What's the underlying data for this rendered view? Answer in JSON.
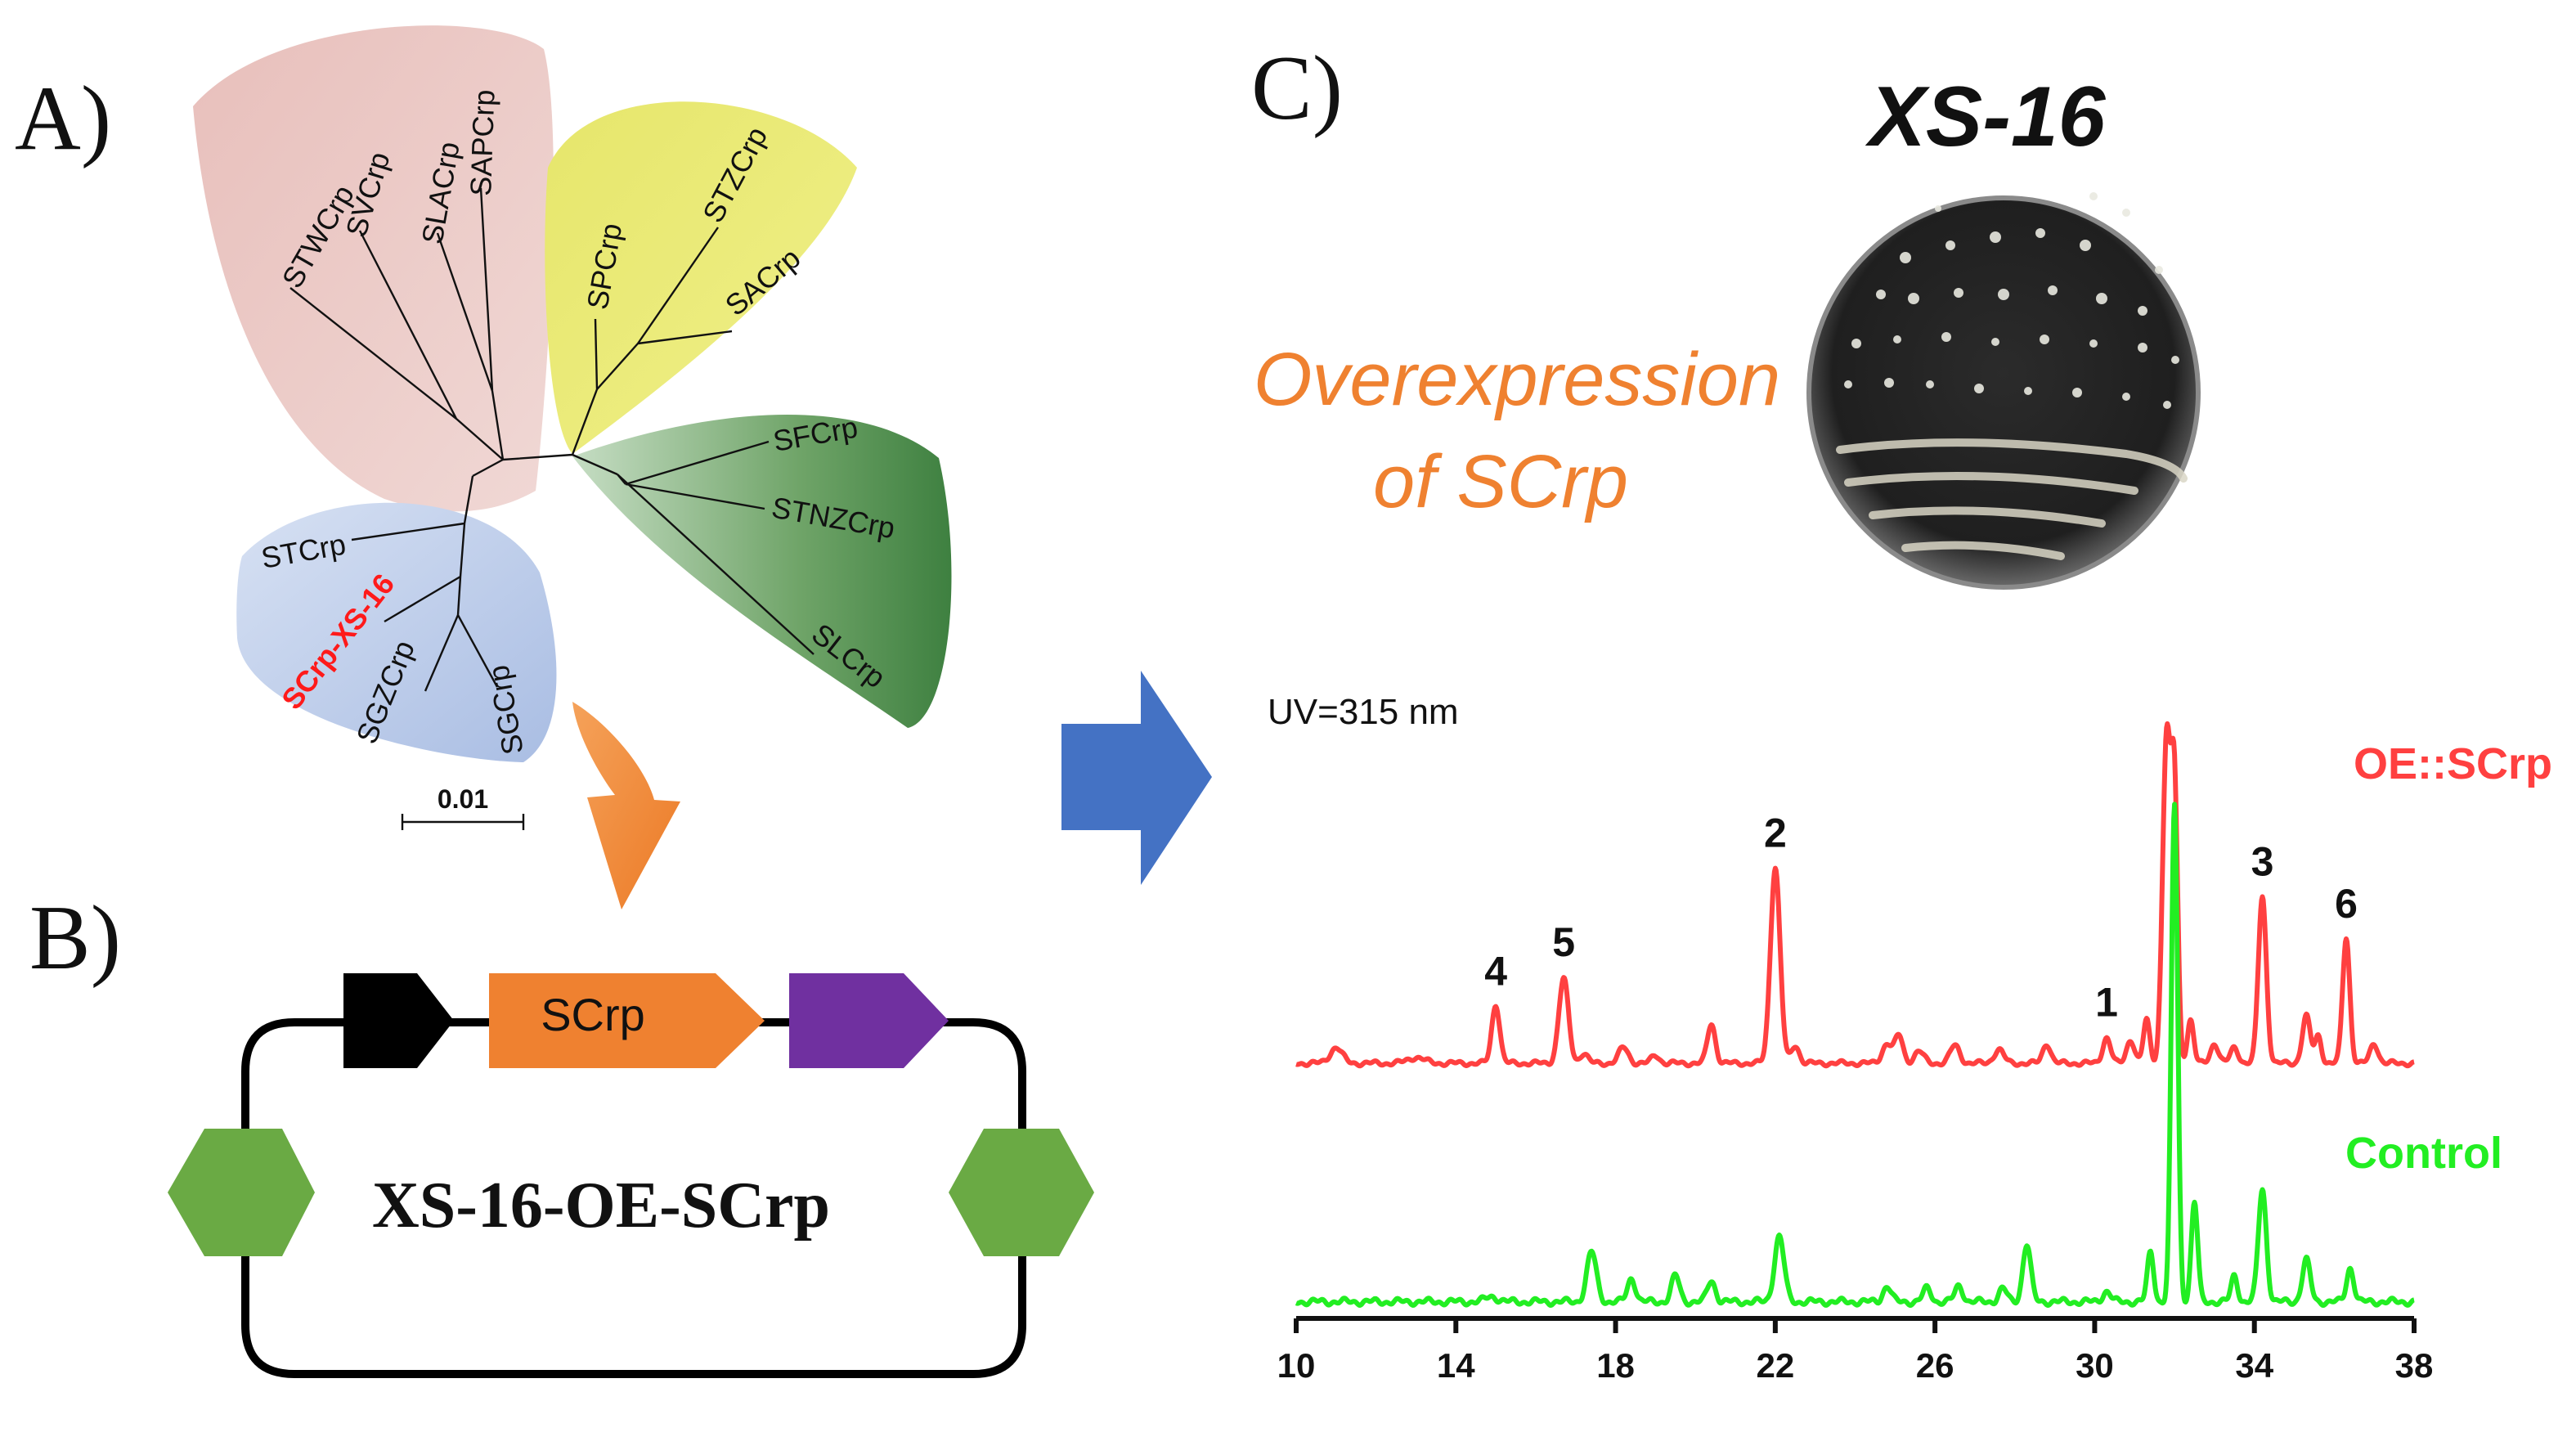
{
  "panels": {
    "a_label": "A)",
    "b_label": "B)",
    "c_label": "C)"
  },
  "tree": {
    "leaves": [
      "STWCrp",
      "SVCrp",
      "SLACrp",
      "SAPCrp",
      "SPCrp",
      "STZCrp",
      "SACrp",
      "SFCrp",
      "STNZCrp",
      "SLCrp",
      "STCrp",
      "SCrp-XS-16",
      "SGZCrp",
      "SGCrp"
    ],
    "scale_bar_label": "0.01",
    "clade_colors": [
      "#e9c4c1",
      "#ecec72",
      "#5f9e5a",
      "#b8c9e8"
    ],
    "highlight_color": "#ff1a1a"
  },
  "construct": {
    "gene_label": "SCrp",
    "plasmid_name": "XS-16-OE-SCrp",
    "promoter_color": "#000000",
    "gene_color": "#ef8130",
    "terminator_color": "#7030a0",
    "marker_color": "#6aaa44"
  },
  "panel_c": {
    "strain_title": "XS-16",
    "overexpression_text_line1": "Overexpression",
    "overexpression_text_line2": "of SCrp",
    "overexpression_color": "#ef8130",
    "uv_label": "UV=315 nm",
    "arrow_color": "#4472c4"
  },
  "chart_data": {
    "type": "line",
    "title": "",
    "xlabel": "",
    "ylabel": "",
    "xlim": [
      10,
      38
    ],
    "x_ticks": [
      "10",
      "14",
      "18",
      "22",
      "26",
      "30",
      "34",
      "38"
    ],
    "series": [
      {
        "name": "OE::SCrp",
        "color": "#ff4040",
        "baseline": 0.05,
        "peaks": [
          {
            "x": 11.0,
            "h": 0.08,
            "w": 0.15
          },
          {
            "x": 13.0,
            "h": 0.03,
            "w": 0.2
          },
          {
            "x": 15.0,
            "h": 0.3,
            "w": 0.1
          },
          {
            "x": 16.7,
            "h": 0.43,
            "w": 0.12
          },
          {
            "x": 17.2,
            "h": 0.05,
            "w": 0.1
          },
          {
            "x": 18.2,
            "h": 0.08,
            "w": 0.12
          },
          {
            "x": 19.0,
            "h": 0.04,
            "w": 0.1
          },
          {
            "x": 20.4,
            "h": 0.2,
            "w": 0.1
          },
          {
            "x": 22.0,
            "h": 1.0,
            "w": 0.12
          },
          {
            "x": 22.5,
            "h": 0.09,
            "w": 0.1
          },
          {
            "x": 24.8,
            "h": 0.1,
            "w": 0.12
          },
          {
            "x": 25.1,
            "h": 0.14,
            "w": 0.1
          },
          {
            "x": 25.6,
            "h": 0.06,
            "w": 0.12
          },
          {
            "x": 26.5,
            "h": 0.09,
            "w": 0.12
          },
          {
            "x": 27.6,
            "h": 0.07,
            "w": 0.12
          },
          {
            "x": 28.8,
            "h": 0.1,
            "w": 0.1
          },
          {
            "x": 30.3,
            "h": 0.13,
            "w": 0.1
          },
          {
            "x": 30.9,
            "h": 0.12,
            "w": 0.1
          },
          {
            "x": 31.3,
            "h": 0.22,
            "w": 0.08
          },
          {
            "x": 31.8,
            "h": 1.65,
            "w": 0.1
          },
          {
            "x": 32.0,
            "h": 1.35,
            "w": 0.08
          },
          {
            "x": 32.4,
            "h": 0.22,
            "w": 0.08
          },
          {
            "x": 33.0,
            "h": 0.1,
            "w": 0.1
          },
          {
            "x": 33.5,
            "h": 0.08,
            "w": 0.1
          },
          {
            "x": 34.2,
            "h": 0.85,
            "w": 0.1
          },
          {
            "x": 35.3,
            "h": 0.24,
            "w": 0.1
          },
          {
            "x": 35.6,
            "h": 0.14,
            "w": 0.08
          },
          {
            "x": 36.3,
            "h": 0.64,
            "w": 0.09
          },
          {
            "x": 37.0,
            "h": 0.1,
            "w": 0.1
          }
        ]
      },
      {
        "name": "Control",
        "color": "#22ee22",
        "baseline": 0.02,
        "peaks": [
          {
            "x": 14.9,
            "h": 0.02,
            "w": 0.15
          },
          {
            "x": 17.4,
            "h": 0.19,
            "w": 0.12
          },
          {
            "x": 18.4,
            "h": 0.09,
            "w": 0.1
          },
          {
            "x": 19.5,
            "h": 0.1,
            "w": 0.1
          },
          {
            "x": 20.4,
            "h": 0.08,
            "w": 0.1
          },
          {
            "x": 22.1,
            "h": 0.25,
            "w": 0.12
          },
          {
            "x": 24.8,
            "h": 0.06,
            "w": 0.1
          },
          {
            "x": 25.8,
            "h": 0.05,
            "w": 0.1
          },
          {
            "x": 26.6,
            "h": 0.06,
            "w": 0.1
          },
          {
            "x": 27.7,
            "h": 0.05,
            "w": 0.1
          },
          {
            "x": 28.3,
            "h": 0.22,
            "w": 0.1
          },
          {
            "x": 30.3,
            "h": 0.04,
            "w": 0.1
          },
          {
            "x": 31.4,
            "h": 0.19,
            "w": 0.08
          },
          {
            "x": 32.0,
            "h": 1.9,
            "w": 0.08
          },
          {
            "x": 32.5,
            "h": 0.38,
            "w": 0.08
          },
          {
            "x": 33.5,
            "h": 0.1,
            "w": 0.08
          },
          {
            "x": 34.2,
            "h": 0.43,
            "w": 0.1
          },
          {
            "x": 35.3,
            "h": 0.16,
            "w": 0.1
          },
          {
            "x": 36.4,
            "h": 0.13,
            "w": 0.09
          }
        ]
      }
    ],
    "annotations": [
      {
        "label": "1",
        "x": 30.3,
        "series": "OE::SCrp"
      },
      {
        "label": "2",
        "x": 22.0,
        "series": "OE::SCrp"
      },
      {
        "label": "3",
        "x": 34.2,
        "series": "OE::SCrp"
      },
      {
        "label": "4",
        "x": 15.0,
        "series": "OE::SCrp"
      },
      {
        "label": "5",
        "x": 16.7,
        "series": "OE::SCrp"
      },
      {
        "label": "6",
        "x": 36.3,
        "series": "OE::SCrp"
      }
    ]
  }
}
